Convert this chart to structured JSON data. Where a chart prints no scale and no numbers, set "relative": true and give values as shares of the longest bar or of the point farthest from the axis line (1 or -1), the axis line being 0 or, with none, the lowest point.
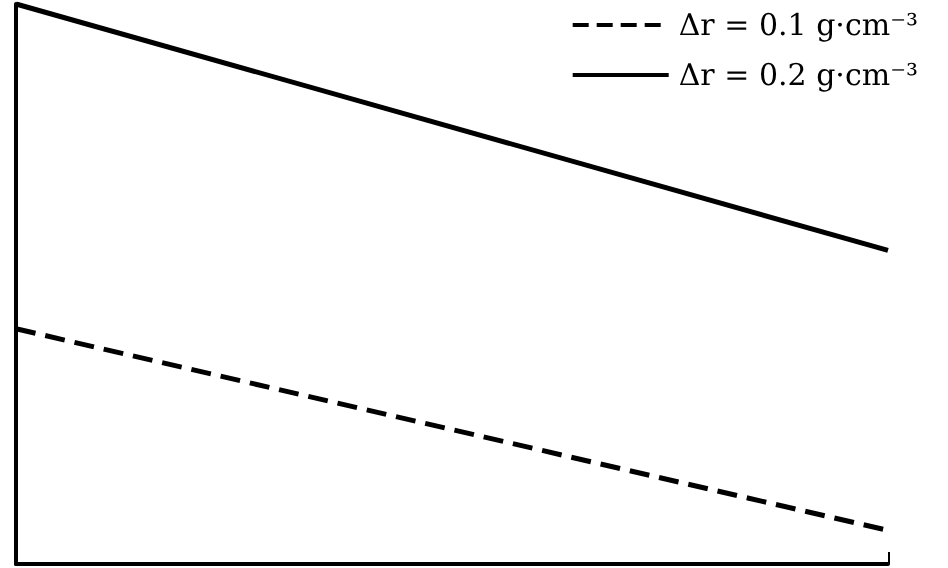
{
  "chart_data": {
    "type": "line",
    "relative": true,
    "categories": [
      null,
      null
    ],
    "series": [
      {
        "name": "Δr = 0.1 g·cm⁻³",
        "color": "#000000",
        "values": [
          0.42,
          0.06
        ],
        "line_style": "dashed"
      },
      {
        "name": "Δr = 0.2 g·cm⁻³",
        "color": "#000000",
        "values": [
          1,
          0.56
        ],
        "line_style": "solid"
      }
    ],
    "legend": "top right",
    "marker": "none",
    "grid": false
  }
}
